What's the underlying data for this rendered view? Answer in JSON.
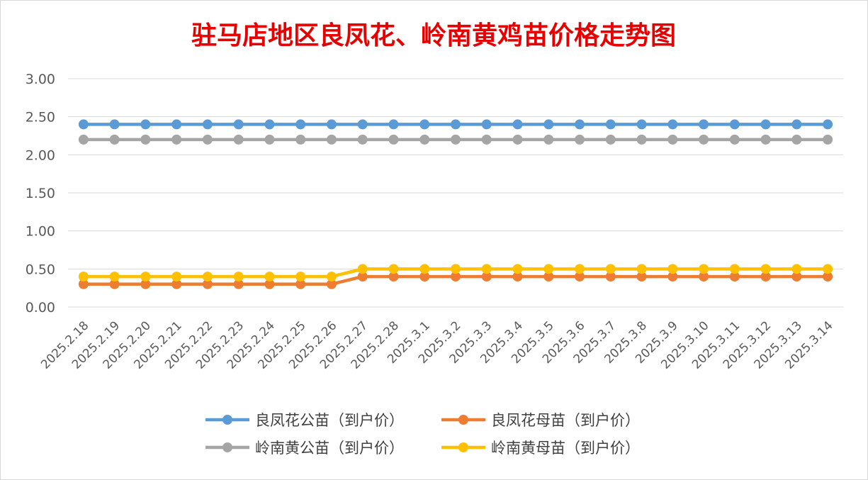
{
  "chart_data": {
    "type": "line",
    "title": "驻马店地区良凤花、岭南黄鸡苗价格走势图",
    "xlabel": "",
    "ylabel": "",
    "ylim": [
      0,
      3
    ],
    "y_ticks": [
      "0.00",
      "0.50",
      "1.00",
      "1.50",
      "2.00",
      "2.50",
      "3.00"
    ],
    "grid": true,
    "legend_position": "bottom",
    "categories": [
      "2025.2.18",
      "2025.2.19",
      "2025.2.20",
      "2025.2.21",
      "2025.2.22",
      "2025.2.23",
      "2025.2.24",
      "2025.2.25",
      "2025.2.26",
      "2025.2.27",
      "2025.2.28",
      "2025.3.1",
      "2025.3.2",
      "2025.3.3",
      "2025.3.4",
      "2025.3.5",
      "2025.3.6",
      "2025.3.7",
      "2025.3.8",
      "2025.3.9",
      "2025.3.10",
      "2025.3.11",
      "2025.3.12",
      "2025.3.13",
      "2025.3.14"
    ],
    "series": [
      {
        "name": "良凤花公苗（到户价）",
        "color": "#5b9bd5",
        "values": [
          2.4,
          2.4,
          2.4,
          2.4,
          2.4,
          2.4,
          2.4,
          2.4,
          2.4,
          2.4,
          2.4,
          2.4,
          2.4,
          2.4,
          2.4,
          2.4,
          2.4,
          2.4,
          2.4,
          2.4,
          2.4,
          2.4,
          2.4,
          2.4,
          2.4
        ]
      },
      {
        "name": "良凤花母苗（到户价）",
        "color": "#ed7d31",
        "values": [
          0.3,
          0.3,
          0.3,
          0.3,
          0.3,
          0.3,
          0.3,
          0.3,
          0.3,
          0.4,
          0.4,
          0.4,
          0.4,
          0.4,
          0.4,
          0.4,
          0.4,
          0.4,
          0.4,
          0.4,
          0.4,
          0.4,
          0.4,
          0.4,
          0.4
        ]
      },
      {
        "name": "岭南黄公苗（到户价）",
        "color": "#a5a5a5",
        "values": [
          2.2,
          2.2,
          2.2,
          2.2,
          2.2,
          2.2,
          2.2,
          2.2,
          2.2,
          2.2,
          2.2,
          2.2,
          2.2,
          2.2,
          2.2,
          2.2,
          2.2,
          2.2,
          2.2,
          2.2,
          2.2,
          2.2,
          2.2,
          2.2,
          2.2
        ]
      },
      {
        "name": "岭南黄母苗（到户价）",
        "color": "#ffc000",
        "values": [
          0.4,
          0.4,
          0.4,
          0.4,
          0.4,
          0.4,
          0.4,
          0.4,
          0.4,
          0.5,
          0.5,
          0.5,
          0.5,
          0.5,
          0.5,
          0.5,
          0.5,
          0.5,
          0.5,
          0.5,
          0.5,
          0.5,
          0.5,
          0.5,
          0.5
        ]
      }
    ]
  }
}
